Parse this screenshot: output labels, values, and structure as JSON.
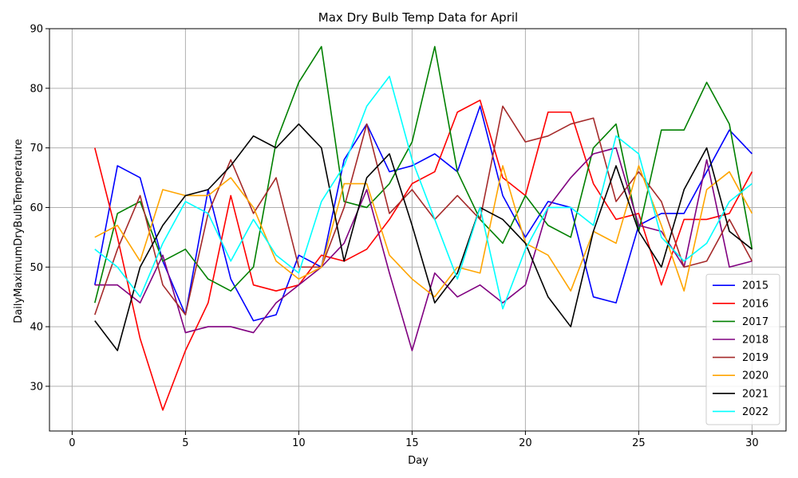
{
  "chart_data": {
    "type": "line",
    "title": "Max Dry Bulb Temp Data for April",
    "xlabel": "Day",
    "ylabel": "DailyMaximumDryBulbTemperature",
    "xlim": [
      -1,
      31.5
    ],
    "ylim": [
      22.5,
      90
    ],
    "xticks": [
      0,
      5,
      10,
      15,
      20,
      25,
      30
    ],
    "yticks": [
      30,
      40,
      50,
      60,
      70,
      80,
      90
    ],
    "grid": true,
    "legend_position": "lower-right",
    "x": [
      1,
      2,
      3,
      4,
      5,
      6,
      7,
      8,
      9,
      10,
      11,
      12,
      13,
      14,
      15,
      16,
      17,
      18,
      19,
      20,
      21,
      22,
      23,
      24,
      25,
      26,
      27,
      28,
      29,
      30
    ],
    "series": [
      {
        "name": "2015",
        "color": "#0000ff",
        "values": [
          47,
          67,
          65,
          51,
          42,
          63,
          48,
          41,
          42,
          52,
          50,
          68,
          74,
          66,
          67,
          69,
          66,
          77,
          62,
          55,
          61,
          60,
          45,
          44,
          57,
          59,
          59,
          66,
          73,
          69
        ]
      },
      {
        "name": "2016",
        "color": "#ff0000",
        "values": [
          70,
          55,
          38,
          26,
          36,
          44,
          62,
          47,
          46,
          47,
          52,
          51,
          53,
          58,
          64,
          66,
          76,
          78,
          65,
          62,
          76,
          76,
          64,
          58,
          59,
          47,
          58,
          58,
          59,
          66
        ]
      },
      {
        "name": "2017",
        "color": "#008000",
        "values": [
          44,
          59,
          61,
          51,
          53,
          48,
          46,
          50,
          71,
          81,
          87,
          61,
          60,
          64,
          71,
          87,
          66,
          58,
          54,
          62,
          57,
          55,
          70,
          74,
          56,
          73,
          73,
          81,
          74,
          53
        ]
      },
      {
        "name": "2018",
        "color": "#800080",
        "values": [
          47,
          47,
          44,
          52,
          39,
          40,
          40,
          39,
          44,
          47,
          50,
          54,
          63,
          49,
          36,
          49,
          45,
          47,
          44,
          47,
          60,
          65,
          69,
          70,
          57,
          56,
          50,
          68,
          50,
          51
        ]
      },
      {
        "name": "2019",
        "color": "#a52a2a",
        "values": [
          42,
          53,
          62,
          47,
          42,
          59,
          68,
          59,
          65,
          50,
          50,
          60,
          74,
          59,
          63,
          58,
          62,
          58,
          77,
          71,
          72,
          74,
          75,
          61,
          66,
          61,
          50,
          51,
          58,
          51
        ]
      },
      {
        "name": "2020",
        "color": "#ffa500",
        "values": [
          55,
          57,
          51,
          63,
          62,
          62,
          65,
          60,
          51,
          48,
          50,
          64,
          64,
          52,
          48,
          45,
          50,
          49,
          67,
          54,
          52,
          46,
          56,
          54,
          67,
          57,
          46,
          63,
          66,
          59
        ]
      },
      {
        "name": "2021",
        "color": "#000000",
        "values": [
          41,
          36,
          50,
          57,
          62,
          63,
          67,
          72,
          70,
          74,
          70,
          51,
          65,
          69,
          57,
          44,
          49,
          60,
          58,
          54,
          45,
          40,
          56,
          67,
          56,
          50,
          63,
          70,
          56,
          53
        ]
      },
      {
        "name": "2022",
        "color": "#00ffff",
        "values": [
          53,
          50,
          45,
          54,
          61,
          59,
          51,
          58,
          52,
          49,
          61,
          67,
          77,
          82,
          68,
          58,
          48,
          60,
          43,
          53,
          60,
          60,
          57,
          72,
          69,
          55,
          51,
          54,
          61,
          64
        ]
      }
    ]
  }
}
